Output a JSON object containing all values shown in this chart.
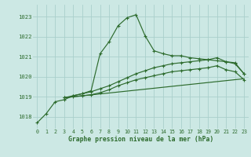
{
  "bg_color": "#cce8e4",
  "grid_color": "#aacfcb",
  "line_color": "#2d6b2d",
  "title": "Graphe pression niveau de la mer (hPa)",
  "ylabel_ticks": [
    1018,
    1019,
    1020,
    1021,
    1022,
    1023
  ],
  "xlim": [
    -0.5,
    23.5
  ],
  "ylim": [
    1017.4,
    1023.6
  ],
  "series1": {
    "x": [
      0,
      1,
      2,
      3,
      4,
      5,
      6,
      7,
      8,
      9,
      10,
      11,
      12,
      13,
      14,
      15,
      16,
      17,
      18,
      19,
      20,
      21,
      22,
      23
    ],
    "y": [
      1017.7,
      1018.15,
      1018.75,
      1018.85,
      1019.05,
      1019.15,
      1019.3,
      1021.15,
      1021.75,
      1022.55,
      1022.95,
      1023.1,
      1022.05,
      1021.3,
      1021.15,
      1021.05,
      1021.05,
      1020.95,
      1020.9,
      1020.85,
      1020.8,
      1020.75,
      1020.7,
      1020.15
    ]
  },
  "series2": {
    "x": [
      3,
      4,
      5,
      6,
      7,
      8,
      9,
      10,
      11,
      12,
      13,
      14,
      15,
      16,
      17,
      18,
      19,
      20,
      21,
      22,
      23
    ],
    "y": [
      1018.95,
      1019.05,
      1019.15,
      1019.25,
      1019.4,
      1019.55,
      1019.75,
      1019.95,
      1020.15,
      1020.3,
      1020.45,
      1020.55,
      1020.65,
      1020.7,
      1020.75,
      1020.8,
      1020.85,
      1020.95,
      1020.75,
      1020.65,
      1020.15
    ]
  },
  "series3": {
    "x": [
      3,
      4,
      5,
      6,
      7,
      8,
      9,
      10,
      11,
      12,
      13,
      14,
      15,
      16,
      17,
      18,
      19,
      20,
      21,
      22,
      23
    ],
    "y": [
      1018.95,
      1019.0,
      1019.05,
      1019.1,
      1019.2,
      1019.35,
      1019.55,
      1019.7,
      1019.85,
      1019.95,
      1020.05,
      1020.15,
      1020.25,
      1020.3,
      1020.35,
      1020.4,
      1020.45,
      1020.55,
      1020.35,
      1020.25,
      1019.85
    ]
  },
  "series4": {
    "x": [
      3,
      23
    ],
    "y": [
      1018.95,
      1019.9
    ]
  }
}
